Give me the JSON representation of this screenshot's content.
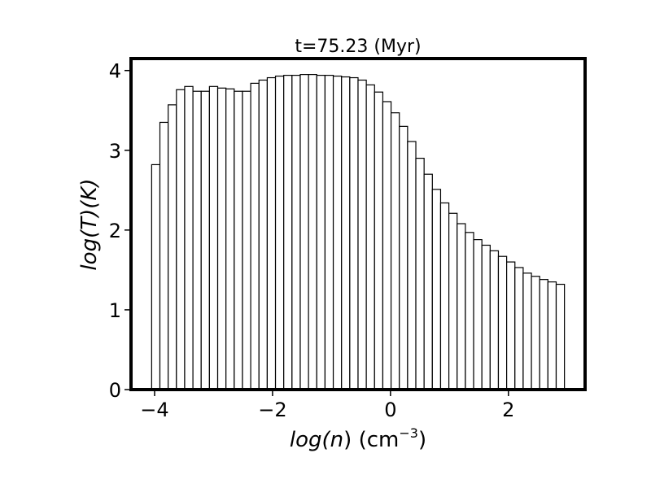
{
  "chart_data": {
    "type": "bar",
    "title": "t=75.23 (Myr)",
    "xlabel": {
      "prefix": "log(",
      "var": "n",
      "suffix": ") (cm",
      "sup": "−3",
      "close": ")"
    },
    "ylabel": {
      "text": "log(T)(K)"
    },
    "xlim": [
      -4.4,
      3.3
    ],
    "ylim": [
      0,
      4.15
    ],
    "xticks": [
      -4,
      -2,
      0,
      2
    ],
    "xtick_labels": [
      "−4",
      "−2",
      "0",
      "2"
    ],
    "yticks": [
      0,
      1,
      2,
      3,
      4
    ],
    "ytick_labels": [
      "0",
      "1",
      "2",
      "3",
      "4"
    ],
    "bin_start": -4.05,
    "bin_width": 0.14,
    "values": [
      2.82,
      3.35,
      3.57,
      3.76,
      3.8,
      3.74,
      3.74,
      3.8,
      3.78,
      3.77,
      3.74,
      3.74,
      3.84,
      3.88,
      3.91,
      3.93,
      3.94,
      3.94,
      3.95,
      3.95,
      3.94,
      3.94,
      3.93,
      3.92,
      3.91,
      3.88,
      3.82,
      3.73,
      3.61,
      3.47,
      3.3,
      3.11,
      2.9,
      2.7,
      2.51,
      2.34,
      2.21,
      2.08,
      1.97,
      1.88,
      1.81,
      1.74,
      1.67,
      1.6,
      1.53,
      1.46,
      1.42,
      1.38,
      1.35,
      1.32
    ],
    "bar_fill": "#ffffff",
    "bar_edge": "#000000",
    "grid": false,
    "legend": "none"
  }
}
